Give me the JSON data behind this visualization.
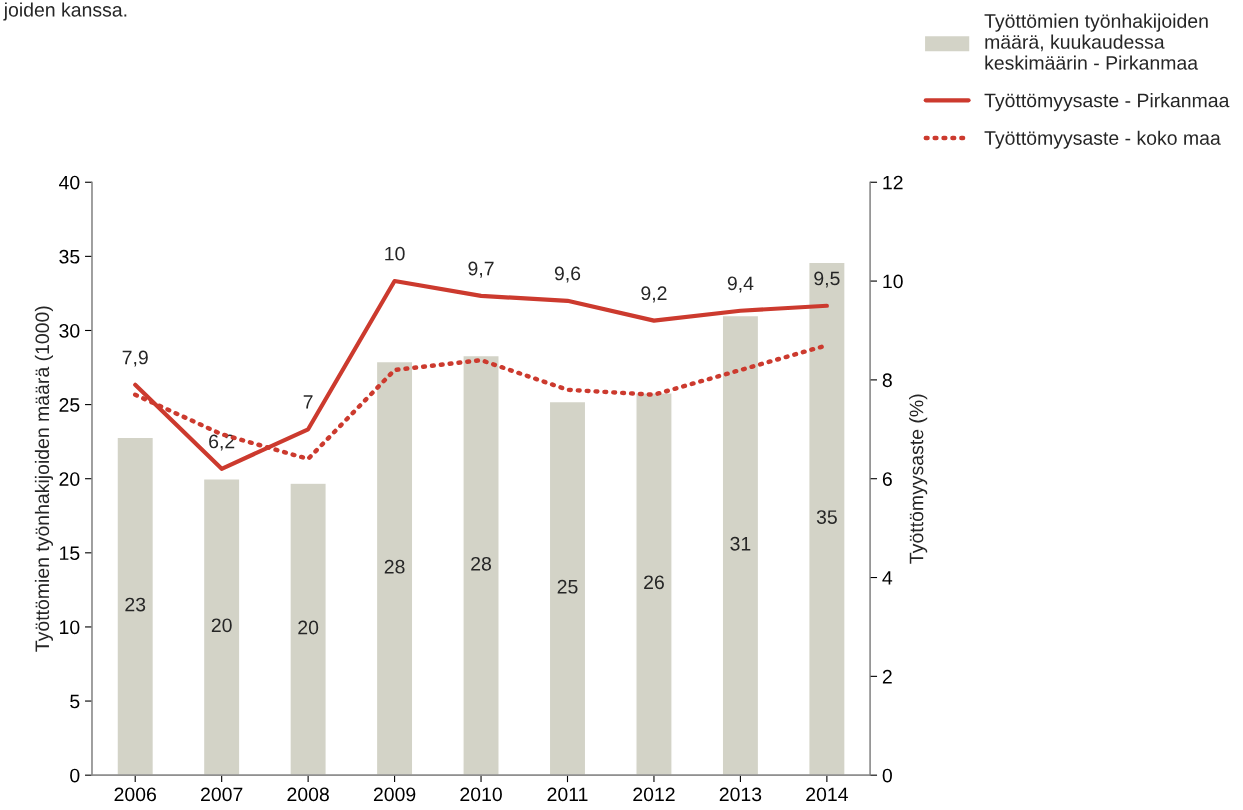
{
  "chart_data": {
    "type": "bar",
    "categories": [
      "2006",
      "2007",
      "2008",
      "2009",
      "2010",
      "2011",
      "2012",
      "2013",
      "2014"
    ],
    "series": [
      {
        "name": "Työttömien työnhakijoiden määrä, kuukaudessa keskimäärin - Pirkanmaa",
        "color": "#d3d3c7",
        "values": [
          22.8,
          20.0,
          19.7,
          27.9,
          28.3,
          25.2,
          25.8,
          31.0,
          34.6
        ],
        "value_labels": [
          "23",
          "20",
          "20",
          "28",
          "28",
          "25",
          "26",
          "31",
          "35"
        ]
      },
      {
        "name": "Työttömyysaste - Pirkanmaa",
        "type": "line",
        "axis": "y2",
        "color": "#cc3a2e",
        "line_style": "solid",
        "values": [
          7.9,
          6.2,
          7.0,
          10.0,
          9.7,
          9.6,
          9.2,
          9.4,
          9.5
        ],
        "value_labels": [
          "7,9",
          "6,2",
          "7",
          "10",
          "9,7",
          "9,6",
          "9,2",
          "9,4",
          "9,5"
        ]
      },
      {
        "name": "Työttömyysaste - koko maa",
        "type": "line",
        "axis": "y2",
        "color": "#cc3a2e",
        "line_style": "dotted",
        "values": [
          7.7,
          6.9,
          6.4,
          8.2,
          8.4,
          7.8,
          7.7,
          8.2,
          8.7
        ]
      }
    ],
    "ylabel": "Työttömien työnhakijoiden määrä (1000)",
    "y2label": "Työttömyysaste (%)",
    "ylim": [
      0,
      40
    ],
    "yticks": [
      0,
      5,
      10,
      15,
      20,
      25,
      30,
      35,
      40
    ],
    "y2lim": [
      0,
      12
    ],
    "y2ticks": [
      0,
      2,
      4,
      6,
      8,
      10,
      12
    ],
    "annotations": [
      "joiden kanssa."
    ],
    "legend": "top right",
    "grid": false
  }
}
